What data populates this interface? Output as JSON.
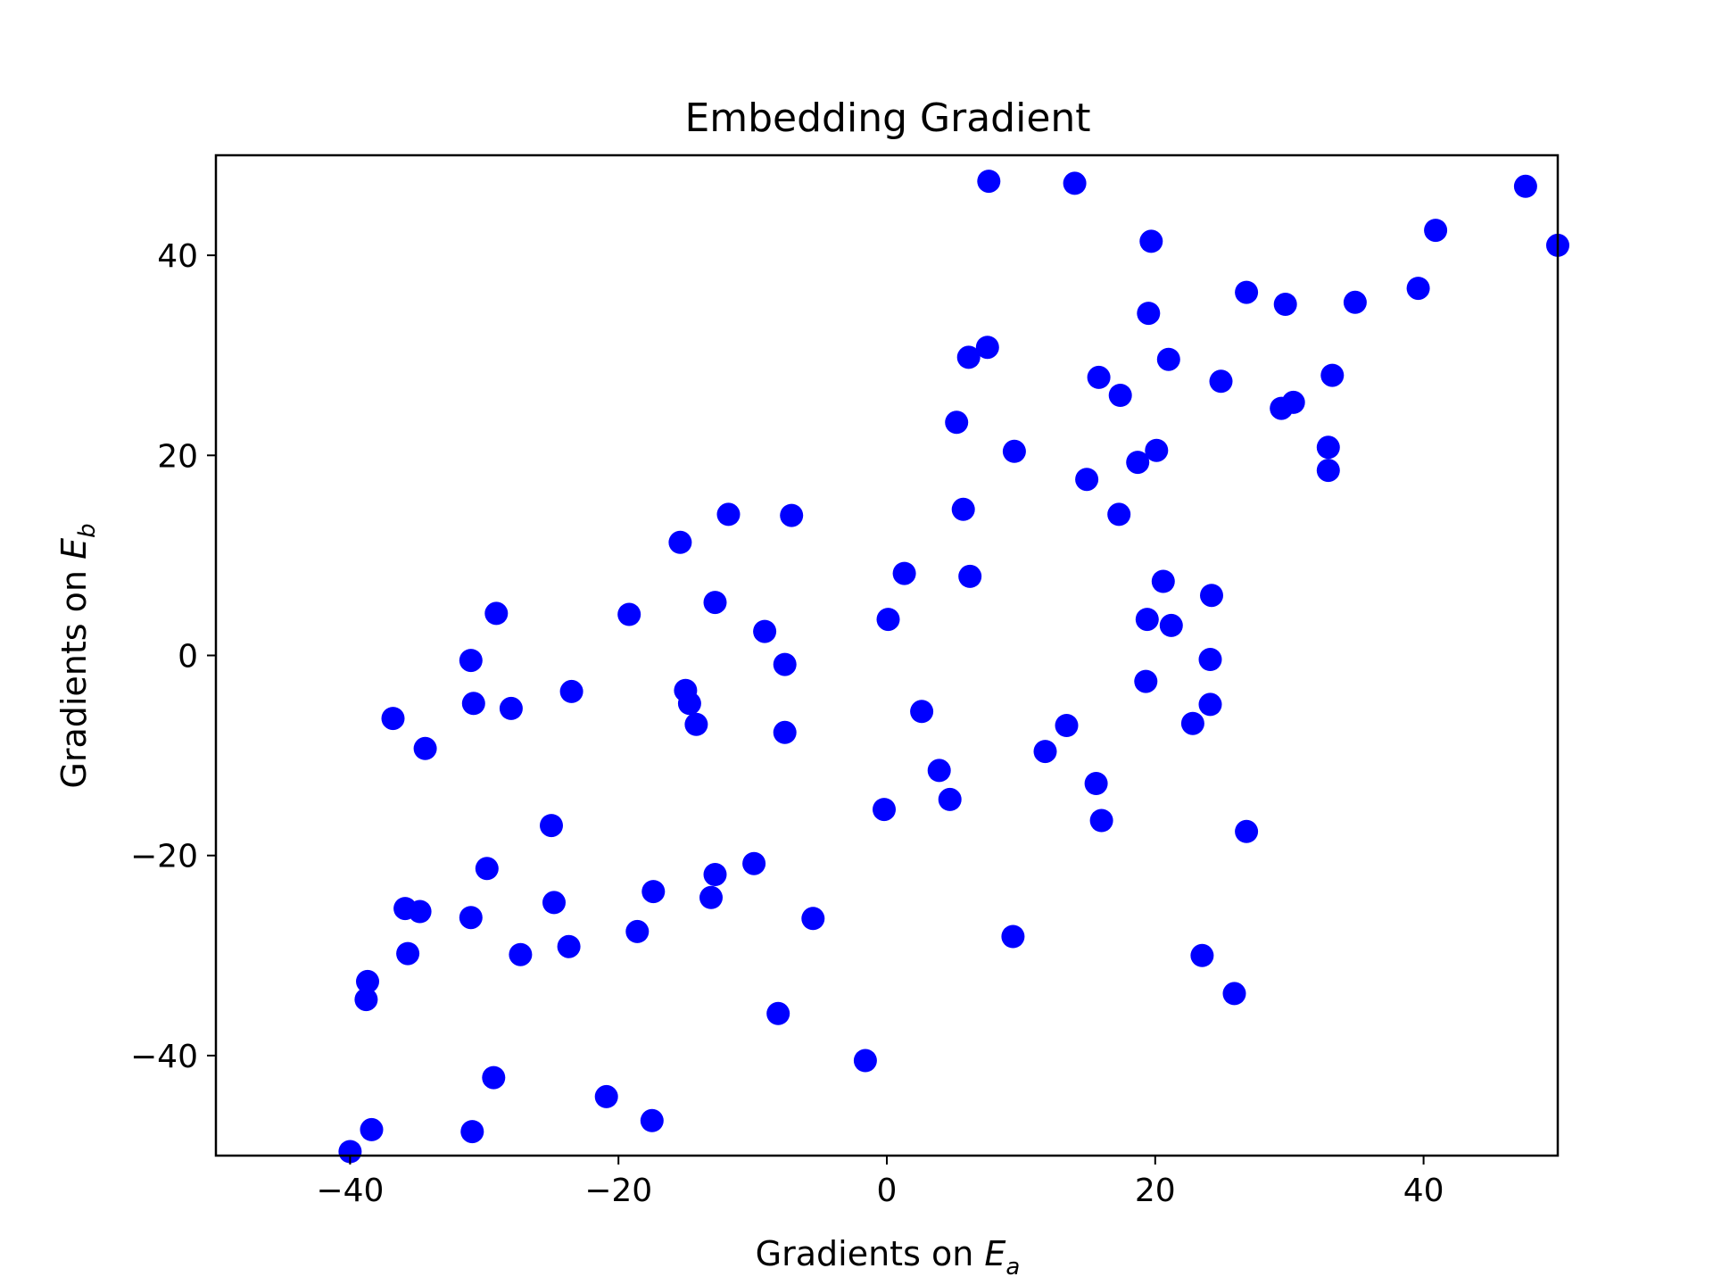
{
  "chart_data": {
    "type": "scatter",
    "title": "Embedding Gradient",
    "xlabel": {
      "text": "Gradients on ",
      "var": "E",
      "sub": "a"
    },
    "ylabel": {
      "text": "Gradients on ",
      "var": "E",
      "sub": "b"
    },
    "xlim": [
      -50,
      50
    ],
    "ylim": [
      -50,
      50
    ],
    "xticks": [
      -40,
      -20,
      0,
      20,
      40
    ],
    "yticks": [
      -40,
      -20,
      0,
      20,
      40
    ],
    "xtick_labels": [
      "−40",
      "−20",
      "0",
      "20",
      "40"
    ],
    "ytick_labels": [
      "−40",
      "−20",
      "0",
      "20",
      "40"
    ],
    "grid": false,
    "marker_color": "#0000ff",
    "points": [
      [
        7.6,
        47.4
      ],
      [
        14.0,
        47.2
      ],
      [
        47.6,
        46.9
      ],
      [
        19.7,
        41.4
      ],
      [
        40.9,
        42.5
      ],
      [
        50.0,
        41.0
      ],
      [
        26.8,
        36.3
      ],
      [
        29.7,
        35.1
      ],
      [
        34.9,
        35.3
      ],
      [
        39.6,
        36.7
      ],
      [
        19.5,
        34.2
      ],
      [
        6.1,
        29.8
      ],
      [
        7.5,
        30.8
      ],
      [
        21.0,
        29.6
      ],
      [
        15.8,
        27.8
      ],
      [
        17.4,
        26.0
      ],
      [
        24.9,
        27.4
      ],
      [
        33.2,
        28.0
      ],
      [
        29.4,
        24.7
      ],
      [
        30.3,
        25.3
      ],
      [
        5.2,
        23.3
      ],
      [
        9.5,
        20.4
      ],
      [
        20.1,
        20.5
      ],
      [
        18.7,
        19.3
      ],
      [
        32.9,
        20.8
      ],
      [
        32.9,
        18.5
      ],
      [
        14.9,
        17.6
      ],
      [
        5.7,
        14.6
      ],
      [
        17.3,
        14.1
      ],
      [
        -11.8,
        14.1
      ],
      [
        -7.1,
        14.0
      ],
      [
        -15.4,
        11.3
      ],
      [
        1.3,
        8.2
      ],
      [
        6.2,
        7.9
      ],
      [
        20.6,
        7.4
      ],
      [
        24.2,
        6.0
      ],
      [
        -12.8,
        5.3
      ],
      [
        -29.1,
        4.2
      ],
      [
        -19.2,
        4.1
      ],
      [
        0.1,
        3.6
      ],
      [
        19.4,
        3.6
      ],
      [
        21.2,
        3.0
      ],
      [
        -9.1,
        2.4
      ],
      [
        -7.6,
        -0.9
      ],
      [
        -31.0,
        -0.5
      ],
      [
        24.1,
        -0.4
      ],
      [
        -23.5,
        -3.6
      ],
      [
        -15.0,
        -3.5
      ],
      [
        -14.7,
        -4.8
      ],
      [
        -30.8,
        -4.8
      ],
      [
        -28.0,
        -5.3
      ],
      [
        24.1,
        -4.9
      ],
      [
        2.6,
        -5.6
      ],
      [
        -14.2,
        -6.9
      ],
      [
        13.4,
        -7.0
      ],
      [
        22.8,
        -6.8
      ],
      [
        -36.8,
        -6.3
      ],
      [
        -7.6,
        -7.7
      ],
      [
        -34.4,
        -9.3
      ],
      [
        11.8,
        -9.6
      ],
      [
        19.3,
        -2.6
      ],
      [
        3.9,
        -11.5
      ],
      [
        15.6,
        -12.8
      ],
      [
        4.7,
        -14.4
      ],
      [
        -0.2,
        -15.4
      ],
      [
        16.0,
        -16.5
      ],
      [
        -25.0,
        -17.0
      ],
      [
        26.8,
        -17.6
      ],
      [
        -9.9,
        -20.8
      ],
      [
        -29.8,
        -21.3
      ],
      [
        -12.8,
        -21.9
      ],
      [
        -17.4,
        -23.6
      ],
      [
        -13.1,
        -24.2
      ],
      [
        -24.8,
        -24.7
      ],
      [
        -35.9,
        -25.3
      ],
      [
        -34.8,
        -25.6
      ],
      [
        -31.0,
        -26.2
      ],
      [
        -5.5,
        -26.3
      ],
      [
        -18.6,
        -27.6
      ],
      [
        9.4,
        -28.1
      ],
      [
        -23.7,
        -29.1
      ],
      [
        -35.7,
        -29.8
      ],
      [
        -27.3,
        -29.9
      ],
      [
        23.5,
        -30.0
      ],
      [
        -38.7,
        -32.6
      ],
      [
        25.9,
        -33.8
      ],
      [
        -38.8,
        -34.4
      ],
      [
        -8.1,
        -35.8
      ],
      [
        -1.6,
        -40.5
      ],
      [
        -29.3,
        -42.2
      ],
      [
        -20.9,
        -44.1
      ],
      [
        -17.5,
        -46.5
      ],
      [
        -38.4,
        -47.4
      ],
      [
        -30.9,
        -47.6
      ],
      [
        -40.0,
        -49.6
      ]
    ]
  }
}
